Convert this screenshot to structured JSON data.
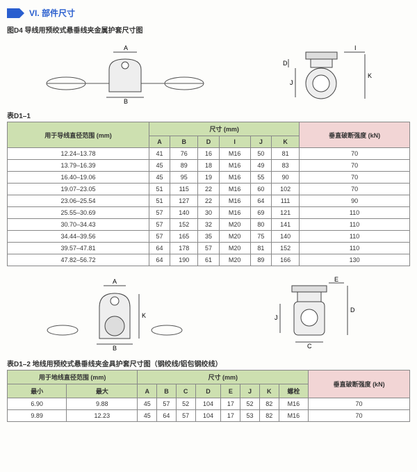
{
  "section": {
    "number": "VI.",
    "title": "部件尺寸"
  },
  "figure1": {
    "caption": "图D4 导线用预绞式悬垂线夹金属护套尺寸图",
    "labels": {
      "A": "A",
      "B": "B",
      "D": "D",
      "I": "I",
      "J": "J",
      "K": "K"
    }
  },
  "table1": {
    "caption": "表D1–1",
    "row_header": "用于导线直径范围 (mm)",
    "group_header": "尺寸 (mm)",
    "strength_header": "垂直破断强度 (kN)",
    "cols": [
      "A",
      "B",
      "D",
      "I",
      "J",
      "K"
    ],
    "rows": [
      {
        "range": "12.24–13.78",
        "A": "41",
        "B": "76",
        "D": "16",
        "I": "M16",
        "J": "50",
        "K": "81",
        "kn": "70"
      },
      {
        "range": "13.79–16.39",
        "A": "45",
        "B": "89",
        "D": "18",
        "I": "M16",
        "J": "49",
        "K": "83",
        "kn": "70"
      },
      {
        "range": "16.40–19.06",
        "A": "45",
        "B": "95",
        "D": "19",
        "I": "M16",
        "J": "55",
        "K": "90",
        "kn": "70"
      },
      {
        "range": "19.07–23.05",
        "A": "51",
        "B": "115",
        "D": "22",
        "I": "M16",
        "J": "60",
        "K": "102",
        "kn": "70"
      },
      {
        "range": "23.06–25.54",
        "A": "51",
        "B": "127",
        "D": "22",
        "I": "M16",
        "J": "64",
        "K": "111",
        "kn": "90"
      },
      {
        "range": "25.55–30.69",
        "A": "57",
        "B": "140",
        "D": "30",
        "I": "M16",
        "J": "69",
        "K": "121",
        "kn": "110"
      },
      {
        "range": "30.70–34.43",
        "A": "57",
        "B": "152",
        "D": "32",
        "I": "M20",
        "J": "80",
        "K": "141",
        "kn": "110"
      },
      {
        "range": "34.44–39.56",
        "A": "57",
        "B": "165",
        "D": "35",
        "I": "M20",
        "J": "75",
        "K": "140",
        "kn": "110"
      },
      {
        "range": "39.57–47.81",
        "A": "64",
        "B": "178",
        "D": "57",
        "I": "M20",
        "J": "81",
        "K": "152",
        "kn": "110"
      },
      {
        "range": "47.82–56.72",
        "A": "64",
        "B": "190",
        "D": "61",
        "I": "M20",
        "J": "89",
        "K": "166",
        "kn": "130"
      }
    ]
  },
  "figure2": {
    "labels": {
      "A": "A",
      "B": "B",
      "C": "C",
      "D": "D",
      "E": "E",
      "J": "J",
      "K": "K"
    }
  },
  "table2": {
    "caption": "表D1–2 地线用预绞式悬垂线夹金具护套尺寸图（钢绞线/铝包钢绞线）",
    "row_header": "用于地线直径范围 (mm)",
    "group_header": "尺寸 (mm)",
    "strength_header": "垂直破断强度 (kN)",
    "min": "最小",
    "max": "最大",
    "bolt": "螺栓",
    "cols": [
      "A",
      "B",
      "C",
      "D",
      "E",
      "J",
      "K"
    ],
    "rows": [
      {
        "min": "6.90",
        "max": "9.88",
        "A": "45",
        "B": "57",
        "C": "52",
        "D": "104",
        "E": "17",
        "J": "52",
        "K": "82",
        "bolt": "M16",
        "kn": "70"
      },
      {
        "min": "9.89",
        "max": "12.23",
        "A": "45",
        "B": "64",
        "C": "57",
        "D": "104",
        "E": "17",
        "J": "53",
        "K": "82",
        "bolt": "M16",
        "kn": "70"
      }
    ]
  },
  "style": {
    "header_green": "#cde0b0",
    "header_rose": "#f2d5d5",
    "blue": "#2a5fcf",
    "border": "#888888"
  }
}
